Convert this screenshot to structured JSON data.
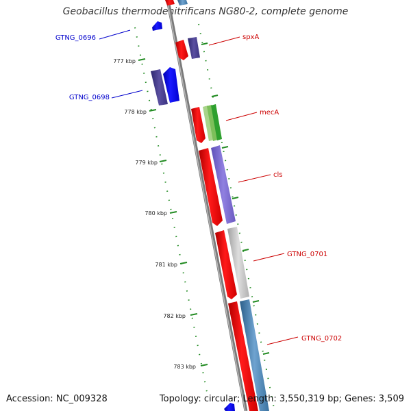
{
  "title": "Geobacillus thermodenitrificans NG80-2, complete genome",
  "footer": {
    "accession": "Accession: NC_009328",
    "stats": "Topology: circular; Length: 3,550,319 bp; Genes: 3,509"
  },
  "kbp_ticks": [
    "777 kbp",
    "778 kbp",
    "779 kbp",
    "780 kbp",
    "781 kbp",
    "782 kbp",
    "783 kbp"
  ],
  "genes": [
    {
      "id": "spxA",
      "label": "spxA",
      "strand": "forward",
      "color": "#cc0000"
    },
    {
      "id": "mecA",
      "label": "mecA",
      "strand": "forward",
      "color": "#cc0000"
    },
    {
      "id": "cls",
      "label": "cls",
      "strand": "forward",
      "color": "#cc0000"
    },
    {
      "id": "GTNG_0701",
      "label": "GTNG_0701",
      "strand": "forward",
      "color": "#cc0000"
    },
    {
      "id": "GTNG_0702",
      "label": "GTNG_0702",
      "strand": "forward",
      "color": "#cc0000"
    },
    {
      "id": "GTNG_0696",
      "label": "GTNG_0696",
      "strand": "reverse",
      "color": "#0000cc"
    },
    {
      "id": "GTNG_0698",
      "label": "GTNG_0698",
      "strand": "reverse",
      "color": "#0000cc"
    }
  ],
  "colors": {
    "gene_red": "#ff0000",
    "gene_blue": "#0000ff",
    "backbone": "#888888",
    "tick_green": "#228b22",
    "cog_purple": "#4a3f8f",
    "cog_lavender": "#7b68cc",
    "cog_gray": "#c0c0c0",
    "cog_steel": "#4682b4",
    "cog_green": "#2ea02e",
    "cog_light_green": "#a8d48a"
  }
}
